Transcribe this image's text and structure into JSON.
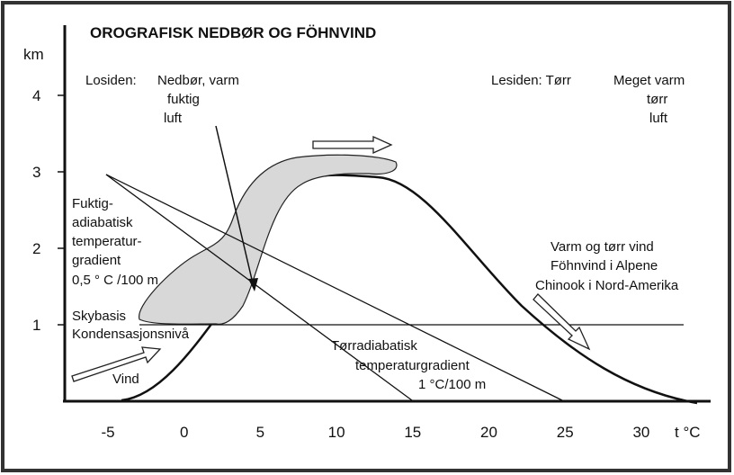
{
  "title": "OROGRAFISK NEDBØR OG FÖHNVIND",
  "y_axis": {
    "unit": "km",
    "ticks": [
      "4",
      "3",
      "2",
      "1"
    ]
  },
  "x_axis": {
    "unit": "t °C",
    "ticks": [
      "-5",
      "0",
      "5",
      "10",
      "15",
      "20",
      "25",
      "30"
    ]
  },
  "windward": {
    "label": "Losiden:",
    "lines": [
      "Nedbør, varm",
      "fuktig",
      "luft"
    ]
  },
  "leeward": {
    "label": "Lesiden: Tørr",
    "lines": [
      "Meget varm",
      "tørr",
      "luft"
    ]
  },
  "moist_adiabat": [
    "Fuktig-",
    "adiabatisk",
    "temperatur-",
    "gradient",
    "0,5 ° C /100 m"
  ],
  "cloud_base": [
    "Skybasis",
    "Kondensasjonsnivå"
  ],
  "wind": "Vind",
  "dry_adiabat": [
    "Tørradiabatisk",
    "temperaturgradient",
    "1 °C/100 m"
  ],
  "foehn": [
    "Varm og tørr vind",
    "Föhnvind i Alpene",
    "Chinook i Nord-Amerika"
  ]
}
